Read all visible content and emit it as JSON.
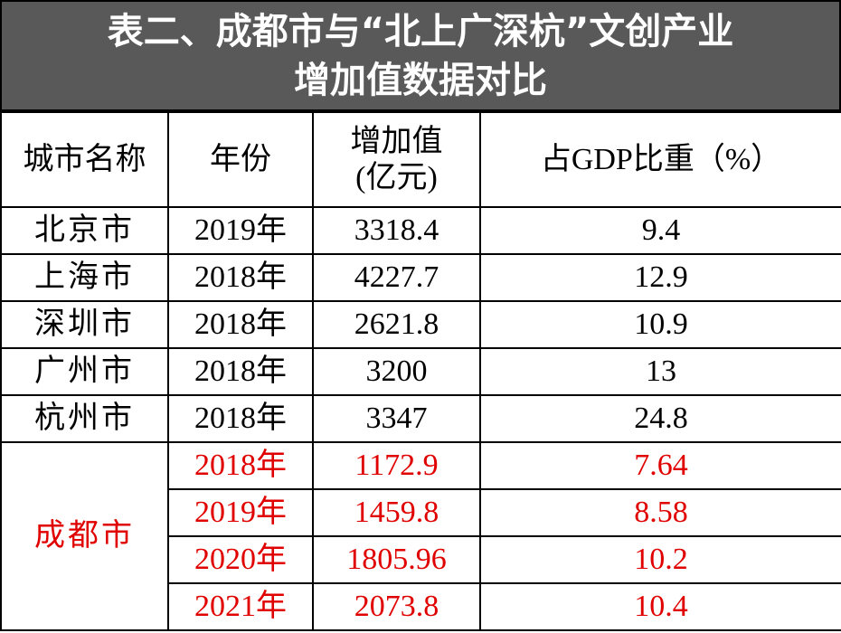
{
  "header": {
    "title_lines": [
      "表二、成都市与“北上广深杭”文创产业",
      "增加值数据对比"
    ]
  },
  "table": {
    "columns": [
      [
        "城市名称"
      ],
      [
        "年份"
      ],
      [
        "增加值",
        "(亿元)"
      ],
      [
        "占GDP比重（%）"
      ]
    ],
    "rows": [
      [
        "北京市",
        "2019年",
        "3318.4",
        "9.4"
      ],
      [
        "上海市",
        "2018年",
        "4227.7",
        "12.9"
      ],
      [
        "深圳市",
        "2018年",
        "2621.8",
        "10.9"
      ],
      [
        "广州市",
        "2018年",
        "3200",
        "13"
      ],
      [
        "杭州市",
        "2018年",
        "3347",
        "24.8"
      ]
    ],
    "highlight": {
      "city": "成都市",
      "rows": [
        [
          "2018年",
          "1172.9",
          "7.64"
        ],
        [
          "2019年",
          "1459.8",
          "8.58"
        ],
        [
          "2020年",
          "1805.96",
          "10.2"
        ],
        [
          "2021年",
          "2073.8",
          "10.4"
        ]
      ]
    }
  }
}
